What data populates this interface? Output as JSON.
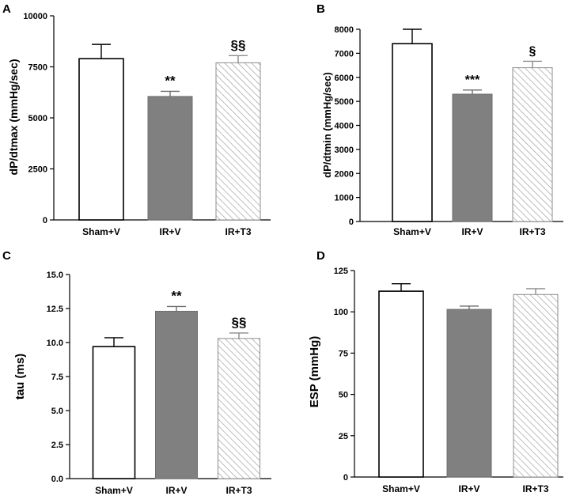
{
  "chart_data": [
    {
      "panel": "A",
      "type": "bar",
      "ylabel": "dP/dtmax (mmHg/sec)",
      "ylim": [
        0,
        10000
      ],
      "yticks": [
        0,
        2500,
        5000,
        7500,
        10000
      ],
      "ytick_labels": [
        "0",
        "2500",
        "5000",
        "7500",
        "10000"
      ],
      "categories": [
        "Sham+V",
        "IR+V",
        "IR+T3"
      ],
      "values": [
        7900,
        6050,
        7700
      ],
      "errors": [
        700,
        250,
        350
      ],
      "annotations": [
        "",
        "**",
        "§§"
      ],
      "fills": [
        "white",
        "gray",
        "hatch"
      ]
    },
    {
      "panel": "B",
      "type": "bar",
      "ylabel": "dP/dtmin (mmHg/sec)",
      "ylim": [
        0,
        8000
      ],
      "yticks": [
        0,
        1000,
        2000,
        3000,
        4000,
        5000,
        6000,
        7000,
        8000
      ],
      "ytick_labels": [
        "0",
        "1000",
        "2000",
        "3000",
        "4000",
        "5000",
        "6000",
        "7000",
        "8000"
      ],
      "categories": [
        "Sham+V",
        "IR+V",
        "IR+T3"
      ],
      "values": [
        7400,
        5300,
        6400
      ],
      "errors": [
        600,
        170,
        270
      ],
      "annotations": [
        "",
        "***",
        "§"
      ],
      "fills": [
        "white",
        "gray",
        "hatch"
      ]
    },
    {
      "panel": "C",
      "type": "bar",
      "ylabel": "tau (ms)",
      "ylim": [
        0,
        15
      ],
      "yticks": [
        0,
        2.5,
        5,
        7.5,
        10,
        12.5,
        15
      ],
      "ytick_labels": [
        "0.0",
        "2.5",
        "5.0",
        "7.5",
        "10.0",
        "12.5",
        "15.0"
      ],
      "categories": [
        "Sham+V",
        "IR+V",
        "IR+T3"
      ],
      "values": [
        9.7,
        12.3,
        10.3
      ],
      "errors": [
        0.65,
        0.35,
        0.4
      ],
      "annotations": [
        "",
        "**",
        "§§"
      ],
      "fills": [
        "white",
        "gray",
        "hatch"
      ]
    },
    {
      "panel": "D",
      "type": "bar",
      "ylabel": "ESP (mmHg)",
      "ylim": [
        0,
        125
      ],
      "yticks": [
        0,
        25,
        50,
        75,
        100,
        125
      ],
      "ytick_labels": [
        "0",
        "25",
        "50",
        "75",
        "100",
        "125"
      ],
      "categories": [
        "Sham+V",
        "IR+V",
        "IR+T3"
      ],
      "values": [
        112.5,
        101.5,
        110.5
      ],
      "errors": [
        4.5,
        2,
        3.5
      ],
      "annotations": [
        "",
        "",
        ""
      ],
      "fills": [
        "white",
        "gray",
        "hatch"
      ]
    }
  ],
  "colors": {
    "bar_gray": "#808080",
    "hatch_line": "#9a9a9a",
    "outline_white": "#000000",
    "outline_gray": "#6e6e6e",
    "outline_hatch": "#8c8c8c"
  }
}
